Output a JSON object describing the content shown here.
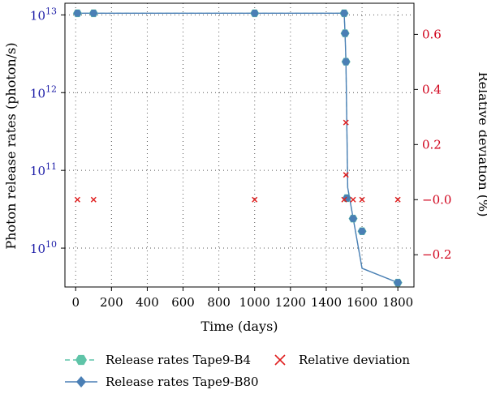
{
  "chart_data": {
    "type": "line",
    "xlabel": "Time (days)",
    "ylabel_left": "Photon release rates (photon/s)",
    "ylabel_right": "Relative deviation (%)",
    "x_ticks": [
      0,
      200,
      400,
      600,
      800,
      1000,
      1200,
      1400,
      1600,
      1800
    ],
    "xlim": [
      -60,
      1890
    ],
    "y_left_scale": "log",
    "y_left_ticks": [
      {
        "value": 10000000000.0,
        "base": "10",
        "exp": "10"
      },
      {
        "value": 100000000000.0,
        "base": "10",
        "exp": "11"
      },
      {
        "value": 1000000000000.0,
        "base": "10",
        "exp": "12"
      },
      {
        "value": 10000000000000.0,
        "base": "10",
        "exp": "13"
      }
    ],
    "y_right_ticks": [
      "−0.2",
      "−0.0",
      "0.2",
      "0.4",
      "0.6"
    ],
    "y_right_tick_values": [
      -0.2,
      0.0,
      0.2,
      0.4,
      0.6
    ],
    "grid": "dotted",
    "legend_position": "bottom",
    "series": [
      {
        "name": "Release rates Tape9-B4",
        "axis": "left",
        "color": "#5fc4a8",
        "marker": "hexagon",
        "line": "dashed",
        "x": [
          10,
          100,
          1000,
          1500,
          1505,
          1510,
          1515,
          1550,
          1600,
          1800
        ],
        "y": [
          10500000000000.0,
          10500000000000.0,
          10500000000000.0,
          10500000000000.0,
          5800000000000.0,
          2500000000000.0,
          44000000000.0,
          24000000000.0,
          16500000000.0,
          3600000000.0
        ]
      },
      {
        "name": "Release rates Tape9-B80",
        "axis": "left",
        "color": "#4a7fb5",
        "marker": "diamond",
        "line": "solid",
        "x": [
          10,
          100,
          1000,
          1500,
          1505,
          1510,
          1515,
          1550,
          1600,
          1800
        ],
        "y": [
          10500000000000.0,
          10500000000000.0,
          10500000000000.0,
          10500000000000.0,
          5800000000000.0,
          2500000000000.0,
          44000000000.0,
          24000000000.0,
          16500000000.0,
          3600000000.0
        ],
        "line_points": [
          {
            "x": 0,
            "y": 10500000000000.0
          },
          {
            "x": 1500,
            "y": 10500000000000.0
          },
          {
            "x": 1505,
            "y": 5800000000000.0
          },
          {
            "x": 1510,
            "y": 2500000000000.0
          },
          {
            "x": 1520,
            "y": 60000000000.0
          },
          {
            "x": 1600,
            "y": 5500000000.0
          },
          {
            "x": 1800,
            "y": 3600000000.0
          }
        ]
      },
      {
        "name": "Relative deviation",
        "axis": "right",
        "color": "#e02020",
        "marker": "x",
        "line": "none",
        "x": [
          10,
          100,
          1000,
          1500,
          1510,
          1510,
          1550,
          1600,
          1800
        ],
        "y": [
          0.0,
          0.0,
          0.0,
          0.0,
          0.28,
          0.09,
          0.0,
          0.0,
          0.0
        ]
      }
    ]
  }
}
